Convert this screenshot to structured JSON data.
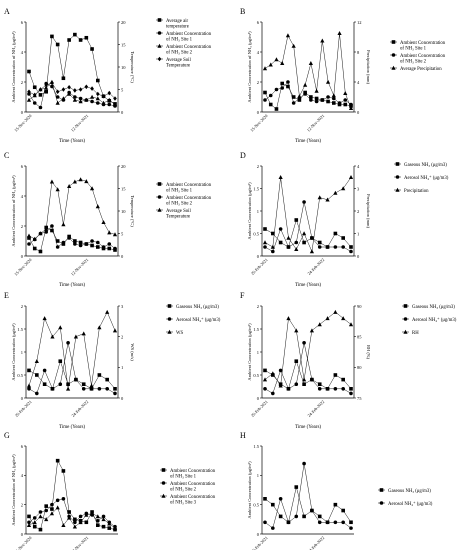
{
  "figure": {
    "panels": [
      "A",
      "B",
      "C",
      "D",
      "E",
      "F",
      "G",
      "H"
    ]
  },
  "chart_data": [
    {
      "panel": "A",
      "type": "line",
      "xlabel": "Time (Years)",
      "ylabel": "Ambient Concentration of NH₃ (μg/m³)",
      "y2label": "Temperature (°C)",
      "x_ticks": [
        "15-Nov-2020",
        "12-Nov-2021"
      ],
      "ylim": [
        0,
        6
      ],
      "yticks": [
        0,
        2,
        4,
        6
      ],
      "y2lim": [
        0,
        20
      ],
      "y2ticks": [
        0,
        5,
        10,
        15,
        20
      ],
      "grid": false,
      "legend": "right",
      "series": [
        {
          "name": "Average air temperature",
          "axis": "right",
          "marker": "square",
          "values": [
            9.0,
            5.5,
            3.8,
            4.5,
            16.8,
            15.0,
            7.5,
            16.0,
            17.2,
            16.0,
            16.5,
            14.0,
            7.0,
            3.5,
            2.5,
            1.8
          ]
        },
        {
          "name": "Ambient Concentration of NH₃ Site 1",
          "axis": "left",
          "marker": "circle",
          "values": [
            1.2,
            0.6,
            0.3,
            1.9,
            1.7,
            1.0,
            0.8,
            1.3,
            1.0,
            0.9,
            0.8,
            0.7,
            0.6,
            0.5,
            0.5,
            0.4
          ]
        },
        {
          "name": "Ambient Concentration of NH₃ Site 2",
          "axis": "left",
          "marker": "triangle",
          "values": [
            0.8,
            1.1,
            1.5,
            1.6,
            2.0,
            0.6,
            0.9,
            1.2,
            0.8,
            0.7,
            0.8,
            1.0,
            0.9,
            0.6,
            0.8,
            0.5
          ]
        },
        {
          "name": "Average Soil Temperature",
          "axis": "right",
          "marker": "diamond",
          "values": [
            4.5,
            3.8,
            5.0,
            6.0,
            6.5,
            4.5,
            5.0,
            5.5,
            4.8,
            5.0,
            5.6,
            5.2,
            4.0,
            3.5,
            4.2,
            3.0
          ]
        }
      ]
    },
    {
      "panel": "B",
      "type": "line",
      "xlabel": "Time (Years)",
      "ylabel": "Ambient Concentration of NH₃ (μg/m³)",
      "y2label": "Precipitation (mm)",
      "x_ticks": [
        "15-Nov-2020",
        "12-Nov-2021"
      ],
      "ylim": [
        0,
        6
      ],
      "yticks": [
        0,
        2,
        4,
        6
      ],
      "y2lim": [
        0,
        12
      ],
      "y2ticks": [
        0,
        4,
        8,
        12
      ],
      "grid": false,
      "legend": "right",
      "series": [
        {
          "name": "Ambient Concentration of NH₃ Site 1",
          "axis": "left",
          "marker": "square",
          "values": [
            1.3,
            0.5,
            0.2,
            1.9,
            1.7,
            1.0,
            0.8,
            1.3,
            1.0,
            0.9,
            0.8,
            0.7,
            0.6,
            0.5,
            0.5,
            0.4
          ]
        },
        {
          "name": "Ambient Concentration of NH₃ Site 2",
          "axis": "left",
          "marker": "circle",
          "values": [
            0.8,
            1.1,
            1.5,
            1.6,
            2.0,
            0.6,
            0.9,
            1.2,
            0.8,
            0.7,
            0.8,
            1.0,
            0.9,
            0.6,
            0.8,
            0.5
          ]
        },
        {
          "name": "Average Precipitation",
          "axis": "right",
          "marker": "triangle",
          "values": [
            5.8,
            6.3,
            7.0,
            6.5,
            10.2,
            8.8,
            2.1,
            3.6,
            6.5,
            2.8,
            9.5,
            4.0,
            2.2,
            10.5,
            2.5,
            0.5
          ]
        }
      ]
    },
    {
      "panel": "C",
      "type": "line",
      "xlabel": "Time (Years)",
      "ylabel": "Ambient Concentration of NH₃ (μg/m³)",
      "y2label": "Temperature (°C)",
      "x_ticks": [
        "15-Nov-2020",
        "12-Nov-2021"
      ],
      "ylim": [
        0,
        6
      ],
      "yticks": [
        0,
        2,
        4,
        6
      ],
      "y2lim": [
        0,
        20
      ],
      "y2ticks": [
        0,
        5,
        10,
        15,
        20
      ],
      "grid": false,
      "legend": "right",
      "series": [
        {
          "name": "Ambient Concentration of NH₃ Site 1",
          "axis": "left",
          "marker": "square",
          "values": [
            1.2,
            0.5,
            0.3,
            1.9,
            1.7,
            1.0,
            0.8,
            1.3,
            1.0,
            0.9,
            0.8,
            0.7,
            0.6,
            0.5,
            0.5,
            0.4
          ]
        },
        {
          "name": "Ambient Concentration of NH₃ Site 2",
          "axis": "left",
          "marker": "circle",
          "values": [
            0.8,
            1.1,
            1.5,
            1.6,
            2.0,
            0.6,
            0.9,
            1.2,
            0.8,
            0.7,
            0.8,
            1.0,
            0.9,
            0.6,
            0.8,
            0.5
          ]
        },
        {
          "name": "Average Soil Temperature",
          "axis": "right",
          "marker": "triangle",
          "values": [
            4.5,
            3.8,
            5.0,
            6.0,
            16.5,
            14.8,
            7.0,
            15.5,
            16.5,
            17.0,
            16.6,
            15.0,
            11.0,
            7.5,
            5.2,
            4.8
          ]
        }
      ]
    },
    {
      "panel": "D",
      "type": "line",
      "xlabel": "Time (Years)",
      "ylabel": "Ambient Concentration (μg/m³)",
      "y2label": "Precipitation (mm)",
      "x_ticks": [
        "25-Feb-2021",
        "24-Feb-2022"
      ],
      "ylim": [
        0,
        2.0
      ],
      "yticks": [
        0,
        0.5,
        1.0,
        1.5,
        2.0
      ],
      "y2lim": [
        0,
        4
      ],
      "y2ticks": [
        0,
        1,
        2,
        3,
        4
      ],
      "grid": false,
      "legend": "right",
      "series": [
        {
          "name": "Gaseous NH₃ (μg/m3)",
          "axis": "left",
          "marker": "square",
          "values": [
            0.6,
            0.5,
            0.3,
            0.2,
            0.8,
            0.3,
            0.4,
            0.3,
            0.2,
            0.5,
            0.4,
            0.2
          ]
        },
        {
          "name": "Aerosol NH₄⁺ (μg/m3)",
          "axis": "left",
          "marker": "circle",
          "values": [
            0.2,
            0.1,
            0.6,
            0.2,
            0.3,
            1.2,
            0.4,
            0.2,
            0.2,
            0.2,
            0.2,
            0.1
          ]
        },
        {
          "name": "Precipitation",
          "axis": "right",
          "marker": "triangle",
          "values": [
            0.6,
            0.4,
            3.5,
            0.8,
            0.3,
            1.0,
            0.2,
            2.6,
            2.5,
            2.8,
            3.0,
            3.5
          ]
        }
      ]
    },
    {
      "panel": "E",
      "type": "line",
      "xlabel": "Time (Years)",
      "ylabel": "Ambient Concentration (μg/m³)",
      "y2label": "WS (m/s)",
      "x_ticks": [
        "25-Feb-2021",
        "24-Feb-2022"
      ],
      "ylim": [
        0,
        2.0
      ],
      "yticks": [
        0,
        0.5,
        1.0,
        1.5,
        2.0
      ],
      "y2lim": [
        0,
        3
      ],
      "y2ticks": [
        0,
        1,
        2,
        3
      ],
      "grid": false,
      "legend": "right",
      "series": [
        {
          "name": "Gaseous NH₃ (μg/m3)",
          "axis": "left",
          "marker": "square",
          "values": [
            0.6,
            0.5,
            0.3,
            0.2,
            0.8,
            0.3,
            0.4,
            0.3,
            0.2,
            0.5,
            0.4,
            0.2
          ]
        },
        {
          "name": "Aerosol NH₄⁺ (μg/m3)",
          "axis": "left",
          "marker": "circle",
          "values": [
            0.2,
            0.1,
            0.6,
            0.2,
            0.3,
            1.2,
            0.4,
            0.2,
            0.2,
            0.2,
            0.2,
            0.1
          ]
        },
        {
          "name": "WS",
          "axis": "right",
          "marker": "triangle",
          "values": [
            0.4,
            1.2,
            2.6,
            2.0,
            2.3,
            0.3,
            2.0,
            2.1,
            0.4,
            2.3,
            2.8,
            2.2
          ]
        }
      ]
    },
    {
      "panel": "F",
      "type": "line",
      "xlabel": "Time (Years)",
      "ylabel": "Ambient Concentration (μg/m³)",
      "y2label": "RH (%)",
      "x_ticks": [
        "25-Feb-2021",
        "24-Feb-2022"
      ],
      "ylim": [
        0,
        2.0
      ],
      "yticks": [
        0,
        0.5,
        1.0,
        1.5,
        2.0
      ],
      "y2lim": [
        75,
        90
      ],
      "y2ticks": [
        75,
        80,
        85,
        90
      ],
      "grid": false,
      "legend": "right",
      "series": [
        {
          "name": "Gaseous NH₃ (μg/m3)",
          "axis": "left",
          "marker": "square",
          "values": [
            0.6,
            0.5,
            0.3,
            0.2,
            0.8,
            0.3,
            0.4,
            0.3,
            0.2,
            0.5,
            0.4,
            0.2
          ]
        },
        {
          "name": "Aerosol NH₄⁺ (μg/m3)",
          "axis": "left",
          "marker": "circle",
          "values": [
            0.2,
            0.1,
            0.6,
            0.2,
            0.3,
            1.2,
            0.4,
            0.2,
            0.2,
            0.2,
            0.2,
            0.1
          ]
        },
        {
          "name": "RH",
          "axis": "right",
          "marker": "triangle",
          "values": [
            78,
            79,
            77,
            88,
            86,
            78,
            86,
            87,
            88,
            89,
            88,
            87
          ]
        }
      ]
    },
    {
      "panel": "G",
      "type": "line",
      "xlabel": "Time (Years)",
      "ylabel": "Ambient Concentration of NH₃ (μg/m³)",
      "x_ticks": [
        "15-Nov-2020",
        "12-Nov-2021"
      ],
      "ylim": [
        0,
        6
      ],
      "yticks": [
        0,
        2,
        4,
        6
      ],
      "grid": false,
      "legend": "right",
      "series": [
        {
          "name": "Ambient Concentration of NH₃ Site 1",
          "marker": "square",
          "values": [
            1.2,
            0.5,
            0.3,
            1.9,
            1.7,
            5.0,
            4.3,
            1.5,
            1.0,
            0.9,
            0.8,
            1.5,
            0.6,
            0.5,
            0.4,
            0.3
          ]
        },
        {
          "name": "Ambient Concentration of NH₃ Site 2",
          "marker": "circle",
          "values": [
            0.8,
            1.1,
            1.5,
            1.6,
            2.0,
            2.3,
            2.4,
            1.2,
            0.8,
            1.2,
            1.4,
            1.3,
            0.9,
            1.2,
            0.8,
            0.5
          ]
        },
        {
          "name": "Ambient Concentration of NH₃ Site 3",
          "marker": "triangle",
          "values": [
            0.6,
            0.8,
            1.2,
            1.0,
            1.4,
            1.8,
            0.6,
            1.1,
            0.5,
            0.8,
            1.3,
            1.4,
            1.2,
            1.0,
            0.7,
            0.4
          ]
        }
      ]
    },
    {
      "panel": "H",
      "type": "line",
      "xlabel": "Time (Years)",
      "ylabel": "Ambient Concentration (μg/m³)",
      "x_ticks": [
        "25-Feb-2021",
        "24-Feb-2022"
      ],
      "ylim": [
        0,
        1.5
      ],
      "yticks": [
        0,
        0.5,
        1.0,
        1.5
      ],
      "grid": false,
      "legend": "right",
      "series": [
        {
          "name": "Gaseous NH₃ (μg/m3)",
          "marker": "square",
          "values": [
            0.6,
            0.5,
            0.3,
            0.2,
            0.8,
            0.3,
            0.4,
            0.3,
            0.2,
            0.5,
            0.4,
            0.2
          ]
        },
        {
          "name": "Aerosol NH₄⁺ (μg/m3)",
          "marker": "circle",
          "values": [
            0.2,
            0.1,
            0.6,
            0.2,
            0.3,
            1.2,
            0.4,
            0.2,
            0.2,
            0.2,
            0.2,
            0.1
          ]
        }
      ]
    }
  ]
}
